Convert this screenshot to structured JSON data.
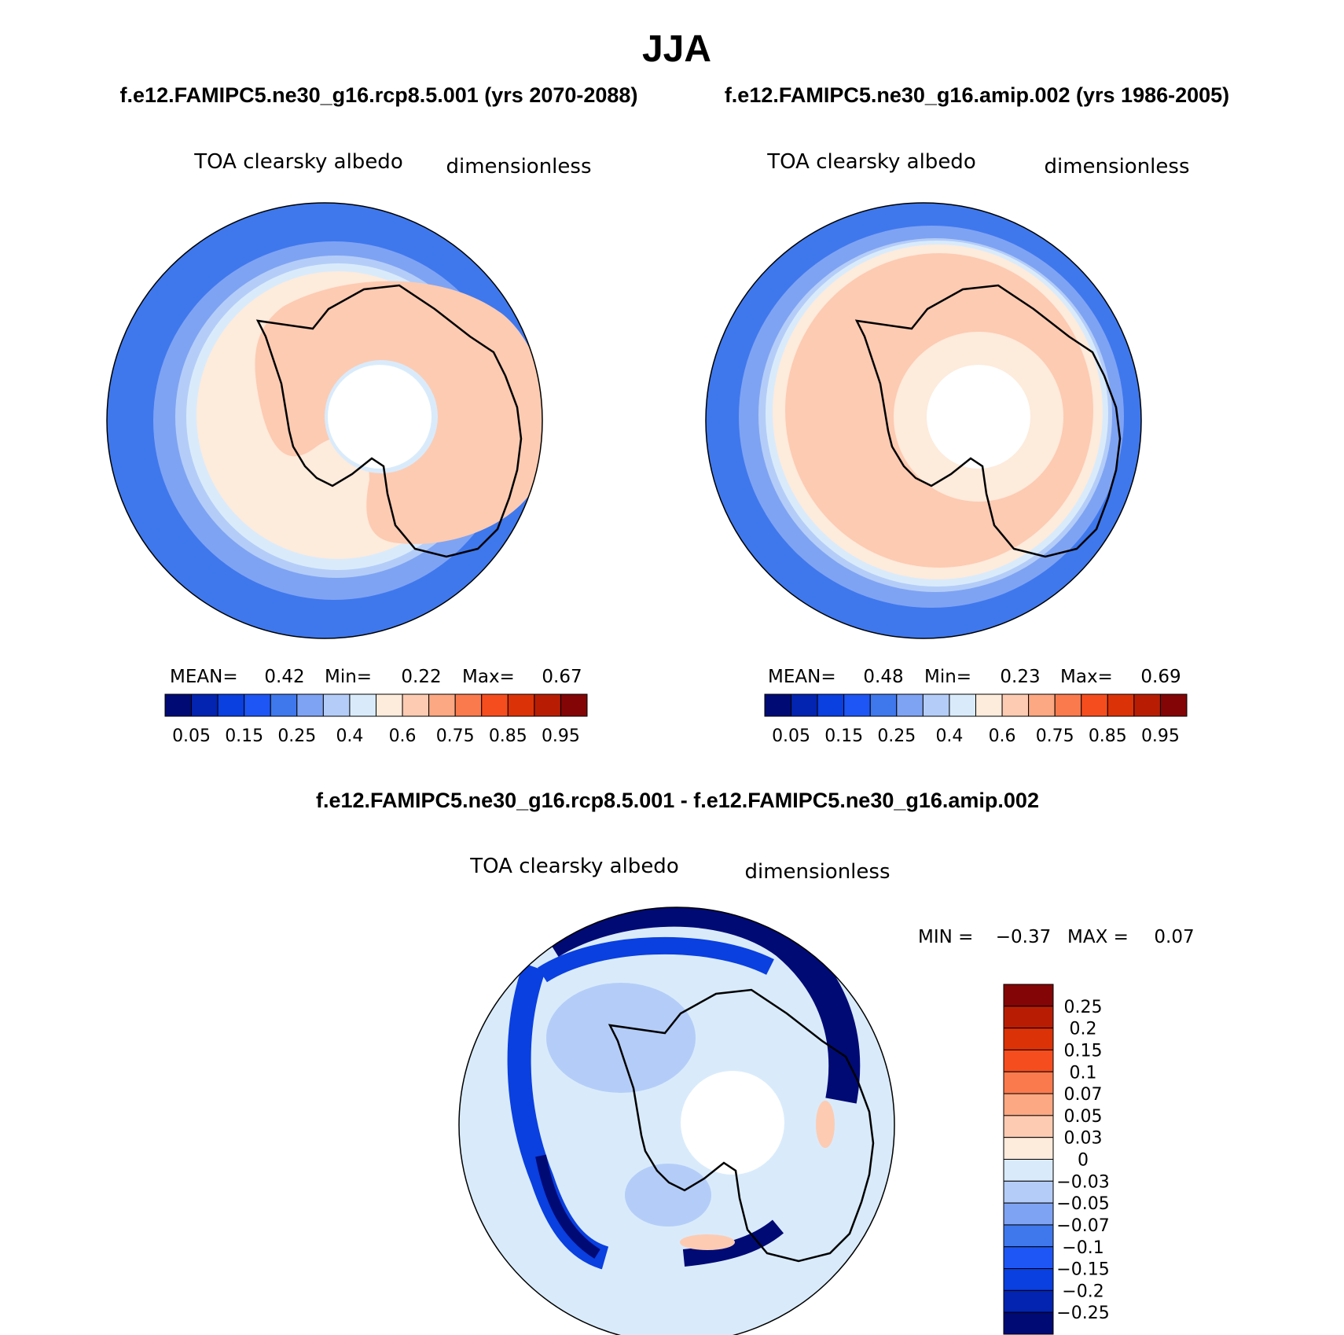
{
  "title": "JJA",
  "panels": [
    {
      "case_label": "f.e12.FAMIPC5.ne30_g16.rcp8.5.001 (yrs 2070-2088)",
      "variable": "TOA clearsky albedo",
      "units": "dimensionless",
      "stats": {
        "mean_label": "MEAN=",
        "mean": "0.42",
        "min_label": "Min=",
        "min": "0.22",
        "max_label": "Max=",
        "max": "0.67"
      }
    },
    {
      "case_label": "f.e12.FAMIPC5.ne30_g16.amip.002 (yrs 1986-2005)",
      "variable": "TOA clearsky albedo",
      "units": "dimensionless",
      "stats": {
        "mean_label": "MEAN=",
        "mean": "0.48",
        "min_label": "Min=",
        "min": "0.23",
        "max_label": "Max=",
        "max": "0.69"
      }
    }
  ],
  "diff_panel": {
    "case_label": "f.e12.FAMIPC5.ne30_g16.rcp8.5.001 - f.e12.FAMIPC5.ne30_g16.amip.002",
    "variable": "TOA clearsky albedo",
    "units": "dimensionless",
    "stats": {
      "min_label": "MIN =",
      "min": "−0.37",
      "max_label": "MAX =",
      "max": "0.07"
    }
  },
  "colorbar_main": {
    "colors": [
      "#000a75",
      "#0224b0",
      "#0a3fe0",
      "#1e56f5",
      "#3f78ed",
      "#7fa3f3",
      "#b4cdf8",
      "#d9ebfb",
      "#fdebdc",
      "#fdcbb2",
      "#fca882",
      "#fb7a4d",
      "#f64d1e",
      "#dc3207",
      "#b81d04",
      "#830505"
    ],
    "labels": [
      "0.05",
      "0.15",
      "0.25",
      "0.4",
      "0.6",
      "0.75",
      "0.85",
      "0.95"
    ]
  },
  "colorbar_diff": {
    "colors": [
      "#830505",
      "#b81d04",
      "#dc3207",
      "#f64d1e",
      "#fb7a4d",
      "#fca882",
      "#fdcbb2",
      "#fdebdc",
      "#d9ebfb",
      "#b4cdf8",
      "#7fa3f3",
      "#3f78ed",
      "#1e56f5",
      "#0a3fe0",
      "#0224b0",
      "#000a75"
    ],
    "labels": [
      "0.25",
      "0.2",
      "0.15",
      "0.1",
      "0.07",
      "0.05",
      "0.03",
      "0",
      "−0.03",
      "−0.05",
      "−0.07",
      "−0.1",
      "−0.15",
      "−0.2",
      "−0.25"
    ]
  },
  "map_colors": {
    "ocean_outer": "#3f78ed",
    "ocean_mid": "#7fa3f3",
    "ocean_light": "#b4cdf8",
    "ice_edge": "#d9ebfb",
    "ice_pale": "#fdebdc",
    "ice": "#fdcbb2",
    "diff_bg": "#d9ebfb",
    "diff_light": "#b4cdf8",
    "diff_mid": "#3f78ed",
    "diff_strong": "#0a3fe0",
    "diff_deep": "#000a75",
    "diff_pos": "#fdcbb2",
    "coast": "#000000"
  }
}
